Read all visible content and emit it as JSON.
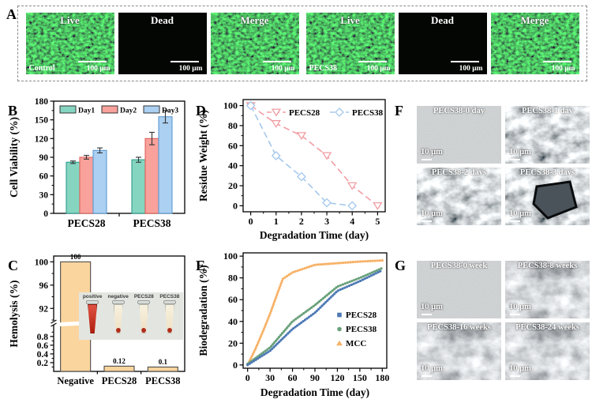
{
  "panel_labels": {
    "a": "A",
    "b": "B",
    "c": "C",
    "d": "D",
    "e": "E",
    "f": "F",
    "g": "G"
  },
  "panel_a": {
    "groups": [
      {
        "name": "Control",
        "images": [
          {
            "title": "Live",
            "scale": "100 μm",
            "texture": "green"
          },
          {
            "title": "Dead",
            "scale": "100 μm",
            "texture": "black"
          },
          {
            "title": "Merge",
            "scale": "100 μm",
            "texture": "green"
          }
        ]
      },
      {
        "name": "PECS38",
        "images": [
          {
            "title": "Live",
            "scale": "100 μm",
            "texture": "green"
          },
          {
            "title": "Dead",
            "scale": "100 μm",
            "texture": "black"
          },
          {
            "title": "Merge",
            "scale": "100 μm",
            "texture": "green"
          }
        ]
      }
    ]
  },
  "chart_data": [
    {
      "id": "B",
      "type": "bar",
      "ylabel": "Cell Viability (%)",
      "categories": [
        "PECS28",
        "PECS38"
      ],
      "series": [
        {
          "name": "Day1",
          "color": "#85d5c1",
          "edge": "#2d9d8c",
          "values": [
            82,
            86
          ],
          "errors": [
            2,
            4
          ]
        },
        {
          "name": "Day2",
          "color": "#f9a19b",
          "edge": "#e0615c",
          "values": [
            90,
            120
          ],
          "errors": [
            3,
            10
          ]
        },
        {
          "name": "Day3",
          "color": "#abd0f1",
          "edge": "#5c9ad3",
          "values": [
            101,
            155
          ],
          "errors": [
            4,
            10
          ]
        }
      ],
      "ylim": [
        0,
        180
      ],
      "yticks": [
        0,
        30,
        60,
        90,
        120,
        150,
        180
      ],
      "legend_position": "top-inside"
    },
    {
      "id": "C",
      "type": "bar-broken-axis",
      "ylabel": "Hemolysis (%)",
      "categories": [
        "Negative",
        "PECS28",
        "PECS38"
      ],
      "values": [
        100,
        0.12,
        0.1
      ],
      "value_labels": [
        "100",
        "0.12",
        "0.1"
      ],
      "bar_color": "#fbd59e",
      "bar_edge": "#4a4a4a",
      "upper_ticks": [
        92,
        96,
        100
      ],
      "lower_ticks": [
        0.2,
        0.4,
        0.6,
        0.8
      ],
      "upper_range": [
        90,
        101
      ],
      "lower_range": [
        0,
        1.05
      ],
      "inset_tubes": [
        {
          "label": "positive",
          "content": "red"
        },
        {
          "label": "negative",
          "content": "cream"
        },
        {
          "label": "PECS28",
          "content": "cream"
        },
        {
          "label": "PECS38",
          "content": "cream"
        }
      ]
    },
    {
      "id": "D",
      "type": "line",
      "xlabel": "Degradation Time (day)",
      "ylabel": "Residue Weight (%)",
      "xticks": [
        0,
        1,
        2,
        3,
        4,
        5
      ],
      "yticks": [
        0,
        20,
        40,
        60,
        80,
        100
      ],
      "xlim": [
        -0.3,
        5.3
      ],
      "ylim": [
        -6,
        106
      ],
      "legend_position": "top-inside",
      "series": [
        {
          "name": "PECS28",
          "color": "#f19da2",
          "marker": "triangle-down",
          "x": [
            0,
            1,
            2,
            3,
            4,
            5
          ],
          "y": [
            100,
            82,
            70,
            50,
            20,
            0
          ]
        },
        {
          "name": "PECS38",
          "color": "#a5c8ec",
          "marker": "diamond",
          "x": [
            0,
            1,
            2,
            3,
            4
          ],
          "y": [
            100,
            50,
            29,
            3,
            0
          ]
        }
      ]
    },
    {
      "id": "E",
      "type": "line",
      "xlabel": "Degradation Time (day)",
      "ylabel": "Biodegradation (%)",
      "xticks": [
        0,
        30,
        60,
        90,
        120,
        150,
        180
      ],
      "yticks": [
        0,
        20,
        40,
        60,
        80,
        100
      ],
      "xlim": [
        -6,
        186
      ],
      "ylim": [
        -3,
        103
      ],
      "legend_position": "right-middle-inside",
      "series": [
        {
          "name": "PECS28",
          "color": "#4e79b5",
          "marker": "square",
          "x": [
            0,
            30,
            60,
            90,
            120,
            150,
            180
          ],
          "y": [
            0,
            13,
            33,
            48,
            68,
            77,
            87
          ]
        },
        {
          "name": "PECS38",
          "color": "#69a17a",
          "marker": "circle",
          "x": [
            0,
            30,
            60,
            90,
            120,
            150,
            180
          ],
          "y": [
            1,
            16,
            40,
            55,
            72,
            80,
            89
          ]
        },
        {
          "name": "MCC",
          "color": "#f6b167",
          "marker": "triangle-up",
          "x": [
            0,
            10,
            20,
            30,
            40,
            47,
            60,
            90,
            120,
            150,
            180
          ],
          "y": [
            0,
            14,
            30,
            47,
            66,
            79,
            85,
            92,
            93.5,
            95,
            96
          ]
        }
      ]
    }
  ],
  "panel_f": {
    "images": [
      {
        "title": "PECS38-0 day",
        "scale": "10 μm",
        "texture": "sem-smooth"
      },
      {
        "title": "PECS38-1 day",
        "scale": "10 μm",
        "texture": "sem-porous"
      },
      {
        "title": "PECS38-2 days",
        "scale": "10 μm",
        "texture": "sem-porous"
      },
      {
        "title": "PECS38-3 days",
        "scale": "10 μm",
        "texture": "sem-porous-hole"
      }
    ]
  },
  "panel_g": {
    "images": [
      {
        "title": "PECS38-0 week",
        "scale": "10 μm",
        "texture": "sem-smooth"
      },
      {
        "title": "PECS38-8 weeks",
        "scale": "10 μm",
        "texture": "sem-rough"
      },
      {
        "title": "PECS38-16 weeks",
        "scale": "10 μm",
        "texture": "sem-rough"
      },
      {
        "title": "PECS38-24 weeks",
        "scale": "10 μm",
        "texture": "sem-rough"
      }
    ]
  }
}
